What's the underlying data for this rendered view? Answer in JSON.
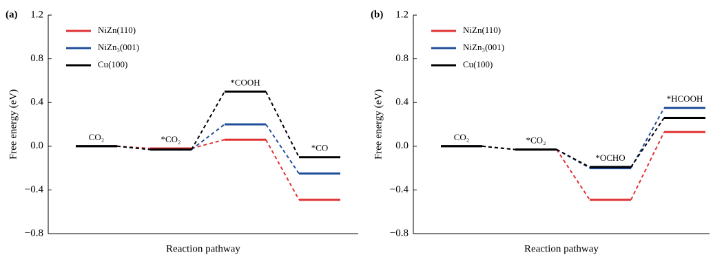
{
  "chart_data": [
    {
      "type": "line",
      "panel_label": "(a)",
      "ylabel": "Free energy (eV)",
      "xlabel": "Reaction pathway",
      "categories": [
        "CO₂",
        "*CO₂",
        "*COOH",
        "*CO"
      ],
      "series": [
        {
          "name": "NiZn(110)",
          "color": "#e03131",
          "values": [
            0,
            -0.02,
            0.06,
            -0.49
          ]
        },
        {
          "name": "NiZn₃(001)",
          "color": "#1f4e9a",
          "values": [
            0,
            -0.03,
            0.2,
            -0.25
          ]
        },
        {
          "name": "Cu(100)",
          "color": "#000000",
          "values": [
            0,
            -0.03,
            0.5,
            -0.1
          ]
        }
      ],
      "ylim": [
        -0.8,
        1.2
      ],
      "yticks": [
        {
          "value": -0.8,
          "label": "−0.8"
        },
        {
          "value": -0.4,
          "label": "−0.4"
        },
        {
          "value": 0,
          "label": "0.0"
        },
        0.4,
        0.8,
        1.2
      ],
      "legend": "upper left"
    },
    {
      "type": "line",
      "panel_label": "(b)",
      "ylabel": "Free energy (eV)",
      "xlabel": "Reaction pathway",
      "categories": [
        "CO₂",
        "*CO₂",
        "*OCHO",
        "*HCOOH"
      ],
      "series": [
        {
          "name": "NiZn(110)",
          "color": "#e03131",
          "values": [
            0,
            -0.03,
            -0.49,
            0.13
          ]
        },
        {
          "name": "NiZn₃(001)",
          "color": "#1f4e9a",
          "values": [
            0,
            -0.03,
            -0.2,
            0.35
          ]
        },
        {
          "name": "Cu(100)",
          "color": "#000000",
          "values": [
            0,
            -0.03,
            -0.19,
            0.26
          ]
        }
      ],
      "ylim": [
        -0.8,
        1.2
      ],
      "yticks": [
        {
          "value": -0.8,
          "label": "−0.8"
        },
        {
          "value": -0.4,
          "label": "−0.4"
        },
        {
          "value": 0,
          "label": "0.0"
        },
        0.4,
        0.8,
        1.2
      ],
      "legend": "upper left"
    }
  ]
}
